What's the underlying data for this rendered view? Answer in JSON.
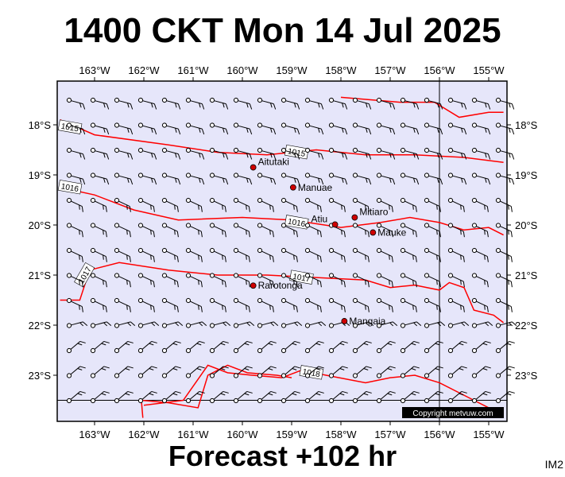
{
  "title": "1400 CKT Mon 14 Jul 2025",
  "footer": "Forecast +102 hr",
  "code": "IM2",
  "copyright": "Copyright metvuw.com",
  "colors": {
    "sea": "#e6e6fa",
    "isobar": "#ff0000",
    "land": "#ff0000",
    "barb": "#000000"
  },
  "lon_ticks": [
    "163°W",
    "162°W",
    "161°W",
    "160°W",
    "159°W",
    "158°W",
    "157°W",
    "156°W",
    "155°W"
  ],
  "lat_ticks": [
    "18°S",
    "19°S",
    "20°S",
    "21°S",
    "22°S",
    "23°S"
  ],
  "places": [
    {
      "name": "Aitutaki",
      "lon": -159.78,
      "lat": -18.85
    },
    {
      "name": "Manuae",
      "lon": -158.97,
      "lat": -19.25
    },
    {
      "name": "Atiu",
      "lon": -158.12,
      "lat": -19.99
    },
    {
      "name": "Mitiaro",
      "lon": -157.72,
      "lat": -19.85
    },
    {
      "name": "Mauke",
      "lon": -157.35,
      "lat": -20.15
    },
    {
      "name": "Rarotonga",
      "lon": -159.78,
      "lat": -21.21
    },
    {
      "name": "Mangaia",
      "lon": -157.93,
      "lat": -21.92
    }
  ],
  "isobars": [
    {
      "label": "1015",
      "points": [
        [
          -163.7,
          -17.9
        ],
        [
          -163.0,
          -18.2
        ],
        [
          -161.5,
          -18.4
        ],
        [
          -160.5,
          -18.55
        ],
        [
          -159.5,
          -18.6
        ],
        [
          -158.5,
          -18.5
        ],
        [
          -157.5,
          -18.6
        ],
        [
          -156.5,
          -18.6
        ],
        [
          -155.5,
          -18.65
        ],
        [
          -154.7,
          -18.75
        ]
      ]
    },
    {
      "label": "1016",
      "points": [
        [
          -163.7,
          -19.25
        ],
        [
          -163.0,
          -19.4
        ],
        [
          -162.2,
          -19.7
        ],
        [
          -161.3,
          -19.9
        ],
        [
          -160.0,
          -19.85
        ],
        [
          -159.0,
          -19.9
        ],
        [
          -158.0,
          -20.05
        ],
        [
          -157.2,
          -19.95
        ],
        [
          -156.6,
          -19.85
        ],
        [
          -156.0,
          -19.95
        ],
        [
          -155.5,
          -20.1
        ],
        [
          -155.0,
          -20.05
        ],
        [
          -154.7,
          -20.2
        ]
      ]
    },
    {
      "label": "1017",
      "points": [
        [
          -163.7,
          -21.5
        ],
        [
          -163.3,
          -21.5
        ],
        [
          -163.1,
          -20.9
        ],
        [
          -162.5,
          -20.75
        ],
        [
          -161.5,
          -20.9
        ],
        [
          -160.5,
          -21.0
        ],
        [
          -159.5,
          -21.0
        ],
        [
          -158.5,
          -21.05
        ],
        [
          -157.5,
          -21.1
        ],
        [
          -157.0,
          -21.25
        ],
        [
          -156.5,
          -21.2
        ],
        [
          -156.0,
          -21.3
        ],
        [
          -155.8,
          -21.15
        ],
        [
          -155.5,
          -21.25
        ],
        [
          -155.3,
          -21.7
        ],
        [
          -154.9,
          -21.8
        ],
        [
          -154.7,
          -21.95
        ]
      ]
    },
    {
      "label": "1018",
      "points": [
        [
          -162.0,
          -23.6
        ],
        [
          -161.2,
          -23.5
        ],
        [
          -160.7,
          -22.8
        ],
        [
          -160.3,
          -22.95
        ],
        [
          -159.8,
          -23.0
        ],
        [
          -159.2,
          -23.05
        ],
        [
          -158.8,
          -22.9
        ],
        [
          -158.3,
          -23.0
        ],
        [
          -157.5,
          -23.15
        ],
        [
          -157.0,
          -23.05
        ],
        [
          -156.5,
          -23.0
        ],
        [
          -156.0,
          -23.15
        ],
        [
          -155.3,
          -23.5
        ],
        [
          -154.9,
          -23.7
        ]
      ]
    },
    {
      "label": "",
      "points": [
        [
          -158.0,
          -17.45
        ],
        [
          -156.8,
          -17.55
        ],
        [
          -156.1,
          -17.55
        ],
        [
          -155.6,
          -17.85
        ],
        [
          -155.0,
          -17.75
        ],
        [
          -154.7,
          -17.75
        ]
      ]
    }
  ],
  "land_outline": [
    [
      -162.02,
      -23.85
    ],
    [
      -162.05,
      -23.5
    ],
    [
      -161.5,
      -23.55
    ],
    [
      -160.9,
      -23.65
    ],
    [
      -160.7,
      -23.0
    ],
    [
      -160.3,
      -22.8
    ],
    [
      -159.9,
      -22.95
    ],
    [
      -159.3,
      -23.0
    ],
    [
      -159.0,
      -23.05
    ]
  ]
}
